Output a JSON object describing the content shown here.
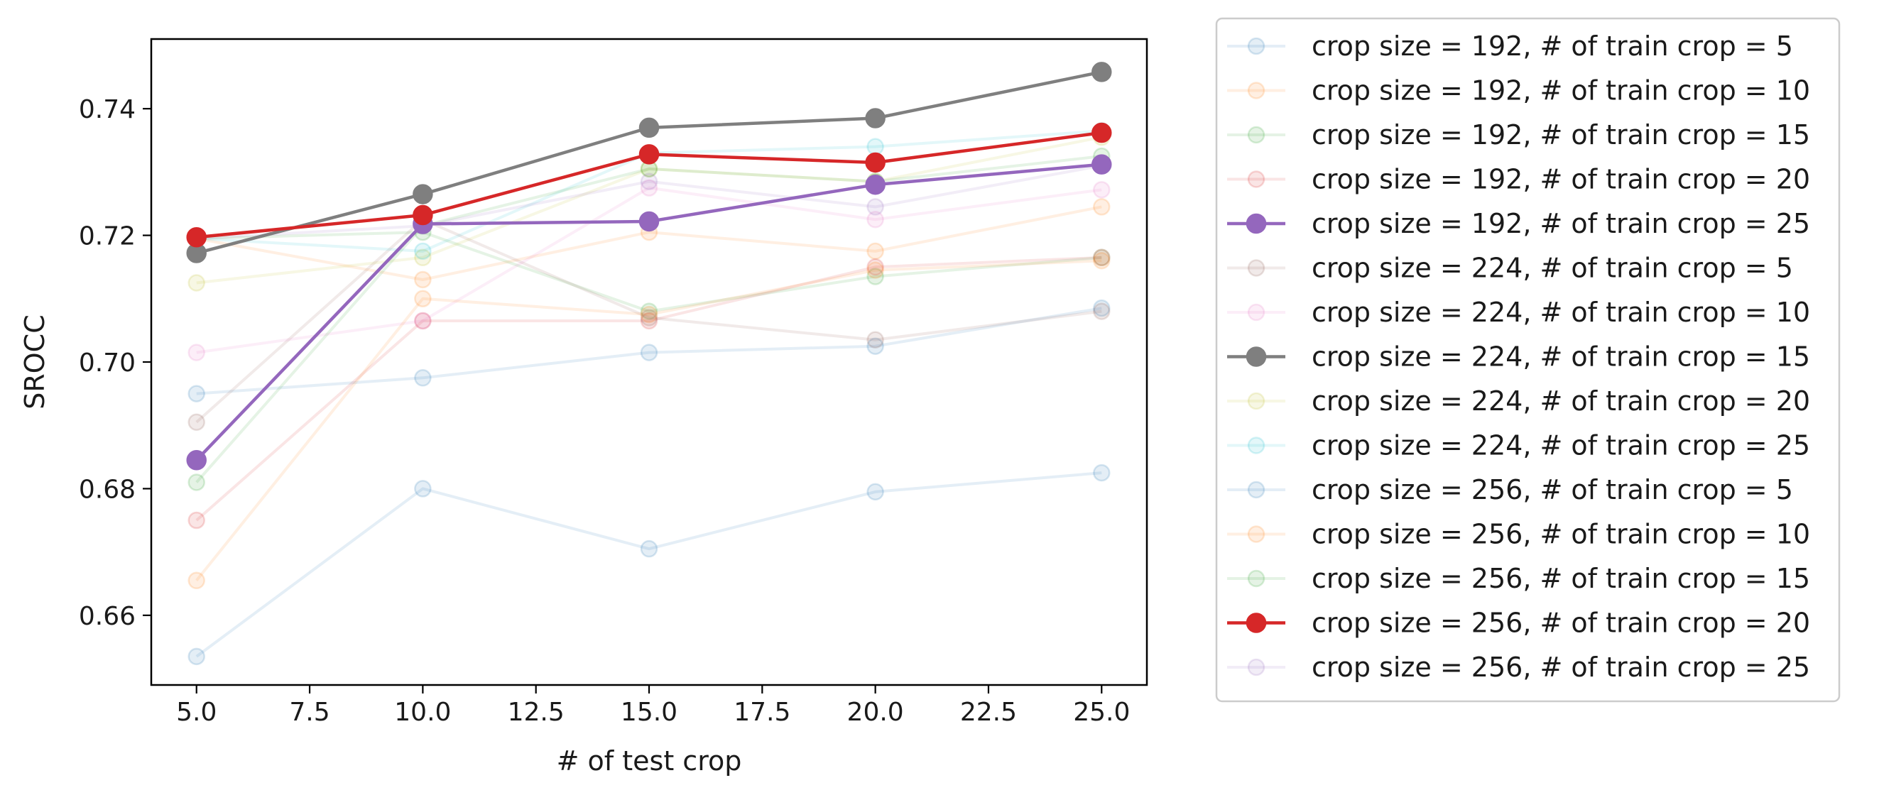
{
  "chart_data": {
    "type": "line",
    "xlabel": "# of test crop",
    "ylabel": "SROCC",
    "xlim": [
      4.0,
      26.0
    ],
    "ylim": [
      0.649,
      0.751
    ],
    "xticks": [
      "5.0",
      "7.5",
      "10.0",
      "12.5",
      "15.0",
      "17.5",
      "20.0",
      "22.5",
      "25.0"
    ],
    "yticks": [
      "0.66",
      "0.68",
      "0.70",
      "0.72",
      "0.74"
    ],
    "x": [
      5,
      10,
      15,
      20,
      25
    ],
    "legend_position": "outside-right",
    "series": [
      {
        "name": "crop size = 192, # of train crop = 5",
        "values": [
          0.695,
          0.6975,
          0.7015,
          0.7025,
          0.7085
        ],
        "color": "#1f77b4",
        "highlight": false
      },
      {
        "name": "crop size = 192, # of train crop = 10",
        "values": [
          0.7195,
          0.713,
          0.7205,
          0.7175,
          0.7245
        ],
        "color": "#ff7f0e",
        "highlight": false
      },
      {
        "name": "crop size = 192, # of train crop = 15",
        "values": [
          0.7195,
          0.7205,
          0.708,
          0.7135,
          0.7165
        ],
        "color": "#2ca02c",
        "highlight": false
      },
      {
        "name": "crop size = 192, # of train crop = 20",
        "values": [
          0.675,
          0.7065,
          0.7065,
          0.715,
          0.7165
        ],
        "color": "#d62728",
        "highlight": false
      },
      {
        "name": "crop size = 192, # of train crop = 25",
        "values": [
          0.6845,
          0.7218,
          0.7222,
          0.728,
          0.7312
        ],
        "color": "#9467bd",
        "highlight": true
      },
      {
        "name": "crop size = 224, # of train crop = 5",
        "values": [
          0.6905,
          0.7225,
          0.707,
          0.7035,
          0.708
        ],
        "color": "#8c564b",
        "highlight": false
      },
      {
        "name": "crop size = 224, # of train crop = 10",
        "values": [
          0.7015,
          0.7065,
          0.7275,
          0.7225,
          0.7272
        ],
        "color": "#e377c2",
        "highlight": false
      },
      {
        "name": "crop size = 224, # of train crop = 15",
        "values": [
          0.7172,
          0.7265,
          0.737,
          0.7385,
          0.7458
        ],
        "color": "#7f7f7f",
        "highlight": true
      },
      {
        "name": "crop size = 224, # of train crop = 20",
        "values": [
          0.7125,
          0.7165,
          0.7305,
          0.7285,
          0.7355
        ],
        "color": "#bcbd22",
        "highlight": false
      },
      {
        "name": "crop size = 224, # of train crop = 25",
        "values": [
          0.7195,
          0.7175,
          0.733,
          0.734,
          0.7365
        ],
        "color": "#17becf",
        "highlight": false
      },
      {
        "name": "crop size = 256, # of train crop = 5",
        "values": [
          0.6535,
          0.68,
          0.6705,
          0.6795,
          0.6825
        ],
        "color": "#1f77b4",
        "highlight": false
      },
      {
        "name": "crop size = 256, # of train crop = 10",
        "values": [
          0.6655,
          0.71,
          0.7075,
          0.7145,
          0.716
        ],
        "color": "#ff7f0e",
        "highlight": false
      },
      {
        "name": "crop size = 256, # of train crop = 15",
        "values": [
          0.681,
          0.7215,
          0.7305,
          0.7285,
          0.7325
        ],
        "color": "#2ca02c",
        "highlight": false
      },
      {
        "name": "crop size = 256, # of train crop = 20",
        "values": [
          0.7197,
          0.7232,
          0.7328,
          0.7315,
          0.7362
        ],
        "color": "#d62728",
        "highlight": true
      },
      {
        "name": "crop size = 256, # of train crop = 25",
        "values": [
          0.7195,
          0.7215,
          0.7285,
          0.7245,
          0.731
        ],
        "color": "#9467bd",
        "highlight": false
      }
    ]
  }
}
